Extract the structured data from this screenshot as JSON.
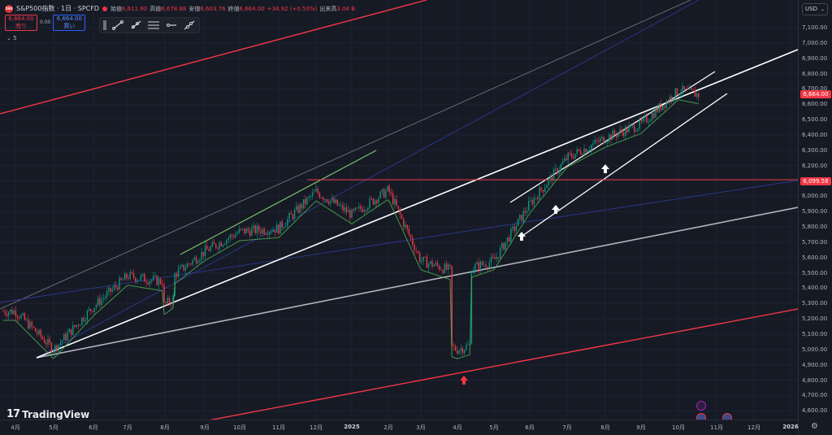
{
  "legend": {
    "symbol_badge": "500",
    "title": "S&P500指数 · 1日 · SPCFD",
    "ohlc": [
      {
        "key": "始値",
        "value": "6,611.90"
      },
      {
        "key": "高値",
        "value": "6,678.88"
      },
      {
        "key": "安値",
        "value": "6,603.76"
      },
      {
        "key": "終値",
        "value": "6,664.00"
      },
      {
        "key": "",
        "value": "+34.92 (+0.53%)"
      },
      {
        "key": "出来高",
        "value": "3.04 B"
      }
    ]
  },
  "trade": {
    "sell_price": "6,664.00",
    "sell_label": "売り",
    "spread": "0.00",
    "buy_price": "6,664.00",
    "buy_label": "買い"
  },
  "indicators_toggle": "⌄ 5",
  "currency": "USD",
  "y_ticks": [
    "7,100.00",
    "7,000.00",
    "6,900.00",
    "6,800.00",
    "6,700.00",
    "6,600.00",
    "6,500.00",
    "6,400.00",
    "6,300.00",
    "6,200.00",
    "6,100.00",
    "6,000.00",
    "5,900.00",
    "5,800.00",
    "5,700.00",
    "5,600.00",
    "5,500.00",
    "5,400.00",
    "5,300.00",
    "5,200.00",
    "5,100.00",
    "5,000.00",
    "4,900.00",
    "4,800.00",
    "4,700.00",
    "4,600.00"
  ],
  "price_tags": [
    {
      "text": "6,664.00",
      "color": "#f23645"
    },
    {
      "text": "6,099.58",
      "color": "#f23645"
    }
  ],
  "x_ticks": [
    "4月",
    "5月",
    "6月",
    "7月",
    "8月",
    "9月",
    "10月",
    "11月",
    "12月",
    "2025",
    "2月",
    "3月",
    "4月",
    "5月",
    "6月",
    "7月",
    "8月",
    "9月",
    "10月",
    "11月",
    "12月",
    "2026"
  ],
  "branding": "TradingView",
  "colors": {
    "up": "#089981",
    "down": "#f23645",
    "accent": "#2962ff"
  },
  "chart_data": {
    "type": "candlestick",
    "instrument": "S&P500指数",
    "interval": "1日",
    "ylim": [
      4550,
      7180
    ],
    "horizontal_level": 6099.58,
    "last_price": 6664.0,
    "monthly_closes": {
      "x": [
        "4月",
        "5月",
        "6月",
        "7月",
        "8月",
        "9月",
        "10月",
        "11月",
        "12月",
        "2025",
        "2月",
        "3月",
        "4月",
        "5月",
        "6月",
        "7月",
        "8月",
        "9月",
        "10月",
        "11月",
        "12月"
      ],
      "y": [
        5250,
        5000,
        5280,
        5480,
        5440,
        5640,
        5770,
        5790,
        6030,
        5880,
        6040,
        5580,
        5500,
        5580,
        5950,
        6250,
        6380,
        6470,
        6690,
        6640,
        null
      ]
    }
  }
}
